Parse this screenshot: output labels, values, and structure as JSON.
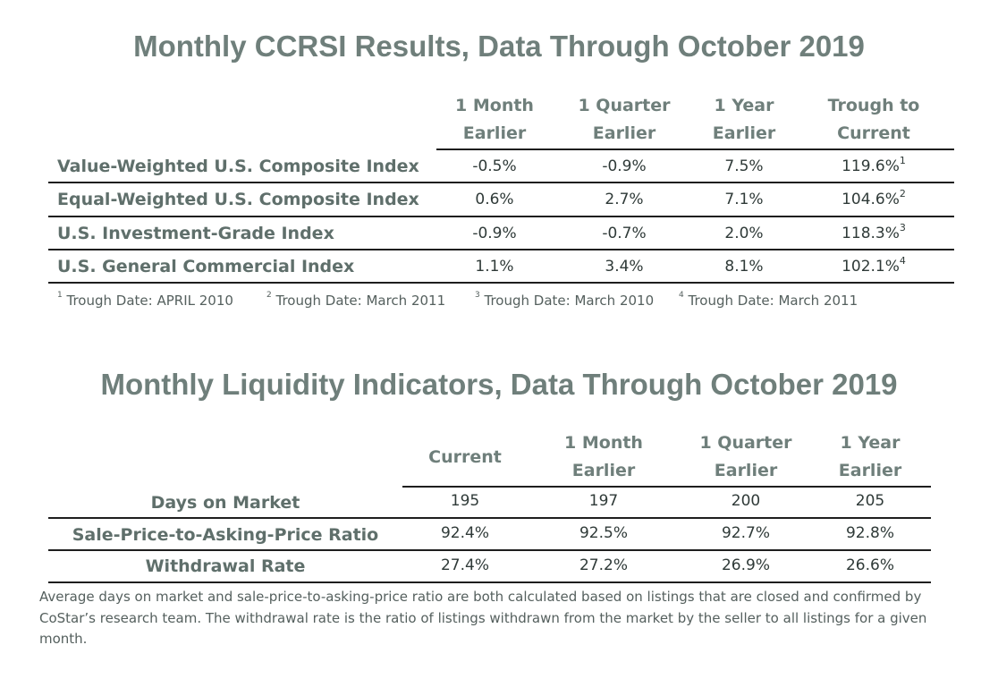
{
  "ccrsi": {
    "title": "Monthly CCRSI Results, Data Through October 2019",
    "headers": [
      {
        "line1": "1 Month",
        "line2": "Earlier"
      },
      {
        "line1": "1 Quarter",
        "line2": "Earlier"
      },
      {
        "line1": "1 Year",
        "line2": "Earlier"
      },
      {
        "line1": "Trough to",
        "line2": "Current"
      }
    ],
    "rows": [
      {
        "label": "Value-Weighted U.S. Composite Index",
        "values": [
          "-0.5%",
          "-0.9%",
          "7.5%",
          "119.6%"
        ],
        "sup": "1"
      },
      {
        "label": "Equal-Weighted U.S. Composite Index",
        "values": [
          "0.6%",
          "2.7%",
          "7.1%",
          "104.6%"
        ],
        "sup": "2"
      },
      {
        "label": "U.S. Investment-Grade Index",
        "values": [
          "-0.9%",
          "-0.7%",
          "2.0%",
          "118.3%"
        ],
        "sup": "3"
      },
      {
        "label": "U.S. General Commercial Index",
        "values": [
          "1.1%",
          "3.4%",
          "8.1%",
          "102.1%"
        ],
        "sup": "4"
      }
    ],
    "footnotes": [
      {
        "mark": "1",
        "text": "Trough Date: APRIL 2010"
      },
      {
        "mark": "2",
        "text": "Trough Date: March 2011"
      },
      {
        "mark": "3",
        "text": "Trough Date: March 2010"
      },
      {
        "mark": "4",
        "text": "Trough Date: March 2011"
      }
    ]
  },
  "liquidity": {
    "title": "Monthly Liquidity Indicators, Data Through October 2019",
    "headers": [
      {
        "line1": "",
        "line2": "Current"
      },
      {
        "line1": "1 Month",
        "line2": "Earlier"
      },
      {
        "line1": "1 Quarter",
        "line2": "Earlier"
      },
      {
        "line1": "1 Year",
        "line2": "Earlier"
      }
    ],
    "rows": [
      {
        "label": "Days on Market",
        "values": [
          "195",
          "197",
          "200",
          "205"
        ]
      },
      {
        "label": "Sale-Price-to-Asking-Price Ratio",
        "values": [
          "92.4%",
          "92.5%",
          "92.7%",
          "92.8%"
        ]
      },
      {
        "label": "Withdrawal Rate",
        "values": [
          "27.4%",
          "27.2%",
          "26.9%",
          "26.6%"
        ]
      }
    ],
    "note": "Average days on market and sale-price-to-asking-price ratio are both calculated based on listings that are closed and confirmed by CoStar’s research team. The withdrawal rate is the ratio of listings withdrawn from the market by the seller to all listings for a given month."
  }
}
